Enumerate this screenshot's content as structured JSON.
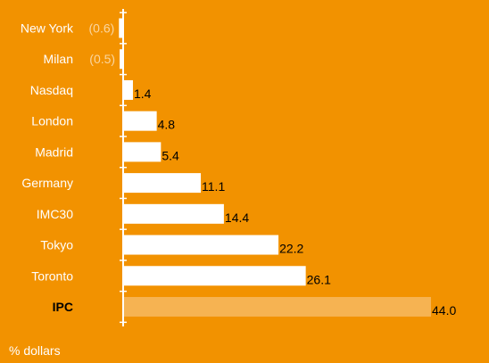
{
  "chart_data": {
    "type": "bar",
    "orientation": "horizontal",
    "categories": [
      "New York",
      "Milan",
      "Nasdaq",
      "London",
      "Madrid",
      "Germany",
      "IMC30",
      "Tokyo",
      "Toronto",
      "IPC"
    ],
    "values": [
      -0.6,
      -0.5,
      1.4,
      4.8,
      5.4,
      11.1,
      14.4,
      22.2,
      26.1,
      44.0
    ],
    "value_labels": [
      "(0.6)",
      "(0.5)",
      "1.4",
      "4.8",
      "5.4",
      "11.1",
      "14.4",
      "22.2",
      "26.1",
      "44.0"
    ],
    "highlight_category": "IPC",
    "unit_label": "% dollars",
    "title": "",
    "xlabel": "",
    "ylabel": "",
    "xlim": [
      -0.6,
      44.0
    ],
    "grid": false,
    "colors": {
      "background": "#F29200",
      "bar": "#FFFFFF",
      "highlight_bar": "#F6B352",
      "axis": "#FFFFFF",
      "negative_label": "#FAD6A0",
      "value_label": "#000000"
    }
  }
}
